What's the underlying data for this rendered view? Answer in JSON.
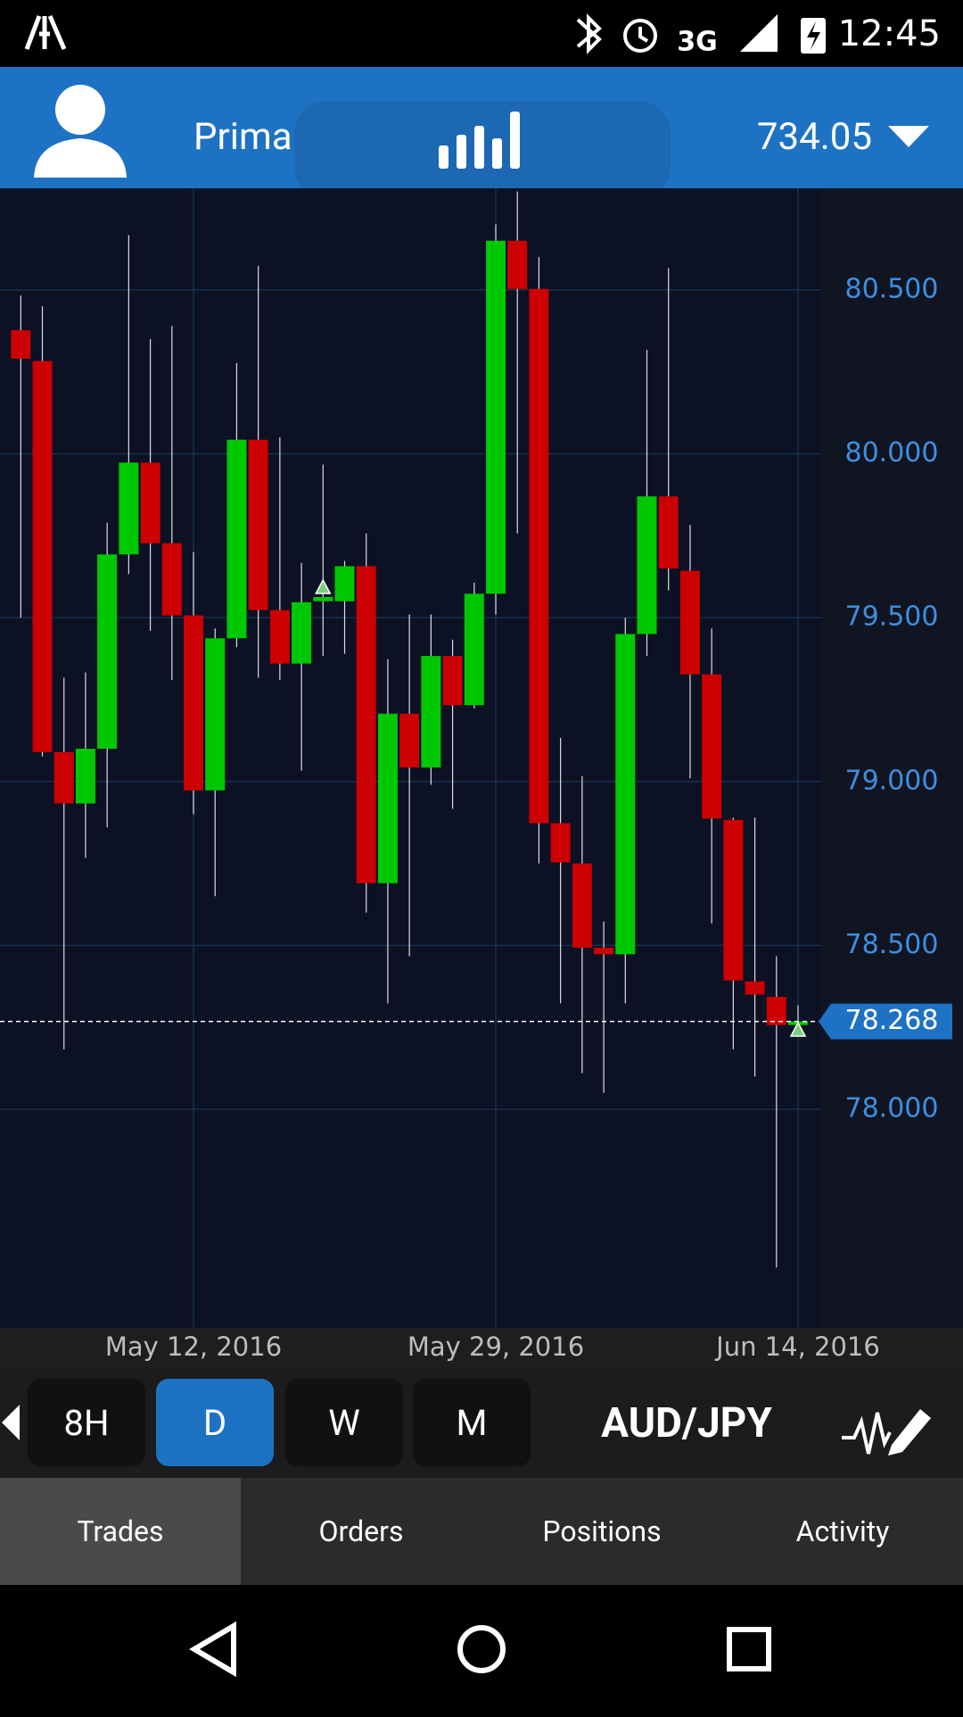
{
  "status_bar": {
    "network": "3G",
    "time": "12:45"
  },
  "header": {
    "account": "Prima",
    "balance": 734.05
  },
  "chart_data": {
    "type": "candlestick",
    "categories": [
      null,
      null,
      null,
      null,
      null,
      null,
      null,
      null,
      "May 12, 2016",
      null,
      null,
      null,
      null,
      null,
      null,
      null,
      null,
      null,
      null,
      null,
      null,
      null,
      "May 29, 2016",
      null,
      null,
      null,
      null,
      null,
      null,
      null,
      null,
      null,
      null,
      null,
      null,
      null,
      "Jun 14, 2016"
    ],
    "open": [
      80.377,
      80.283,
      79.09,
      78.933,
      79.1,
      79.693,
      79.973,
      79.727,
      79.507,
      78.973,
      79.437,
      80.043,
      79.523,
      79.36,
      79.55,
      79.55,
      79.657,
      78.69,
      79.207,
      79.043,
      79.383,
      79.233,
      79.573,
      80.65,
      80.503,
      78.873,
      78.75,
      78.493,
      78.473,
      79.45,
      79.87,
      79.643,
      79.327,
      78.883,
      78.39,
      78.343,
      78.257
    ],
    "high": [
      80.483,
      80.45,
      79.317,
      79.333,
      79.79,
      80.667,
      80.35,
      80.39,
      79.7,
      79.467,
      80.277,
      80.573,
      80.05,
      79.667,
      79.967,
      79.673,
      79.757,
      79.373,
      79.51,
      79.51,
      79.433,
      79.607,
      80.7,
      80.8,
      80.6,
      79.133,
      79.017,
      78.573,
      79.5,
      80.317,
      80.567,
      79.783,
      79.467,
      78.89,
      78.89,
      78.467,
      78.317
    ],
    "low": [
      79.5,
      79.077,
      78.183,
      78.767,
      78.86,
      79.633,
      79.46,
      79.31,
      78.9,
      78.65,
      79.41,
      79.317,
      79.31,
      79.033,
      79.383,
      79.39,
      78.6,
      78.323,
      78.467,
      78.99,
      78.917,
      79.223,
      79.51,
      79.757,
      78.75,
      78.323,
      78.11,
      78.05,
      78.323,
      79.383,
      79.583,
      79.01,
      78.567,
      78.183,
      78.1,
      77.517,
      78.233
    ],
    "close": [
      80.29,
      79.09,
      78.933,
      79.1,
      79.693,
      79.973,
      79.727,
      79.507,
      78.973,
      79.437,
      80.043,
      79.523,
      79.36,
      79.547,
      79.563,
      79.657,
      78.69,
      79.207,
      79.043,
      79.383,
      79.233,
      79.573,
      80.65,
      80.503,
      78.873,
      78.753,
      78.493,
      78.473,
      79.45,
      79.87,
      79.65,
      79.327,
      78.887,
      78.393,
      78.35,
      78.257,
      78.268
    ],
    "up_color": "#00c800",
    "down_color": "#cc0000",
    "ylim": [
      77.333,
      80.81
    ],
    "yticks": [
      {
        "value": 78,
        "label": "78.000"
      },
      {
        "value": 78.5,
        "label": "78.500"
      },
      {
        "value": 79,
        "label": "79.000"
      },
      {
        "value": 79.5,
        "label": "79.500"
      },
      {
        "value": 80,
        "label": "80.000"
      },
      {
        "value": 80.5,
        "label": "80.500"
      }
    ],
    "last_price": 78.268,
    "grid": true
  },
  "timeframes": [
    "8H",
    "D",
    "W",
    "M"
  ],
  "symbol": "AUD/JPY",
  "tabs": [
    "Trades",
    "Orders",
    "Positions",
    "Activity"
  ]
}
